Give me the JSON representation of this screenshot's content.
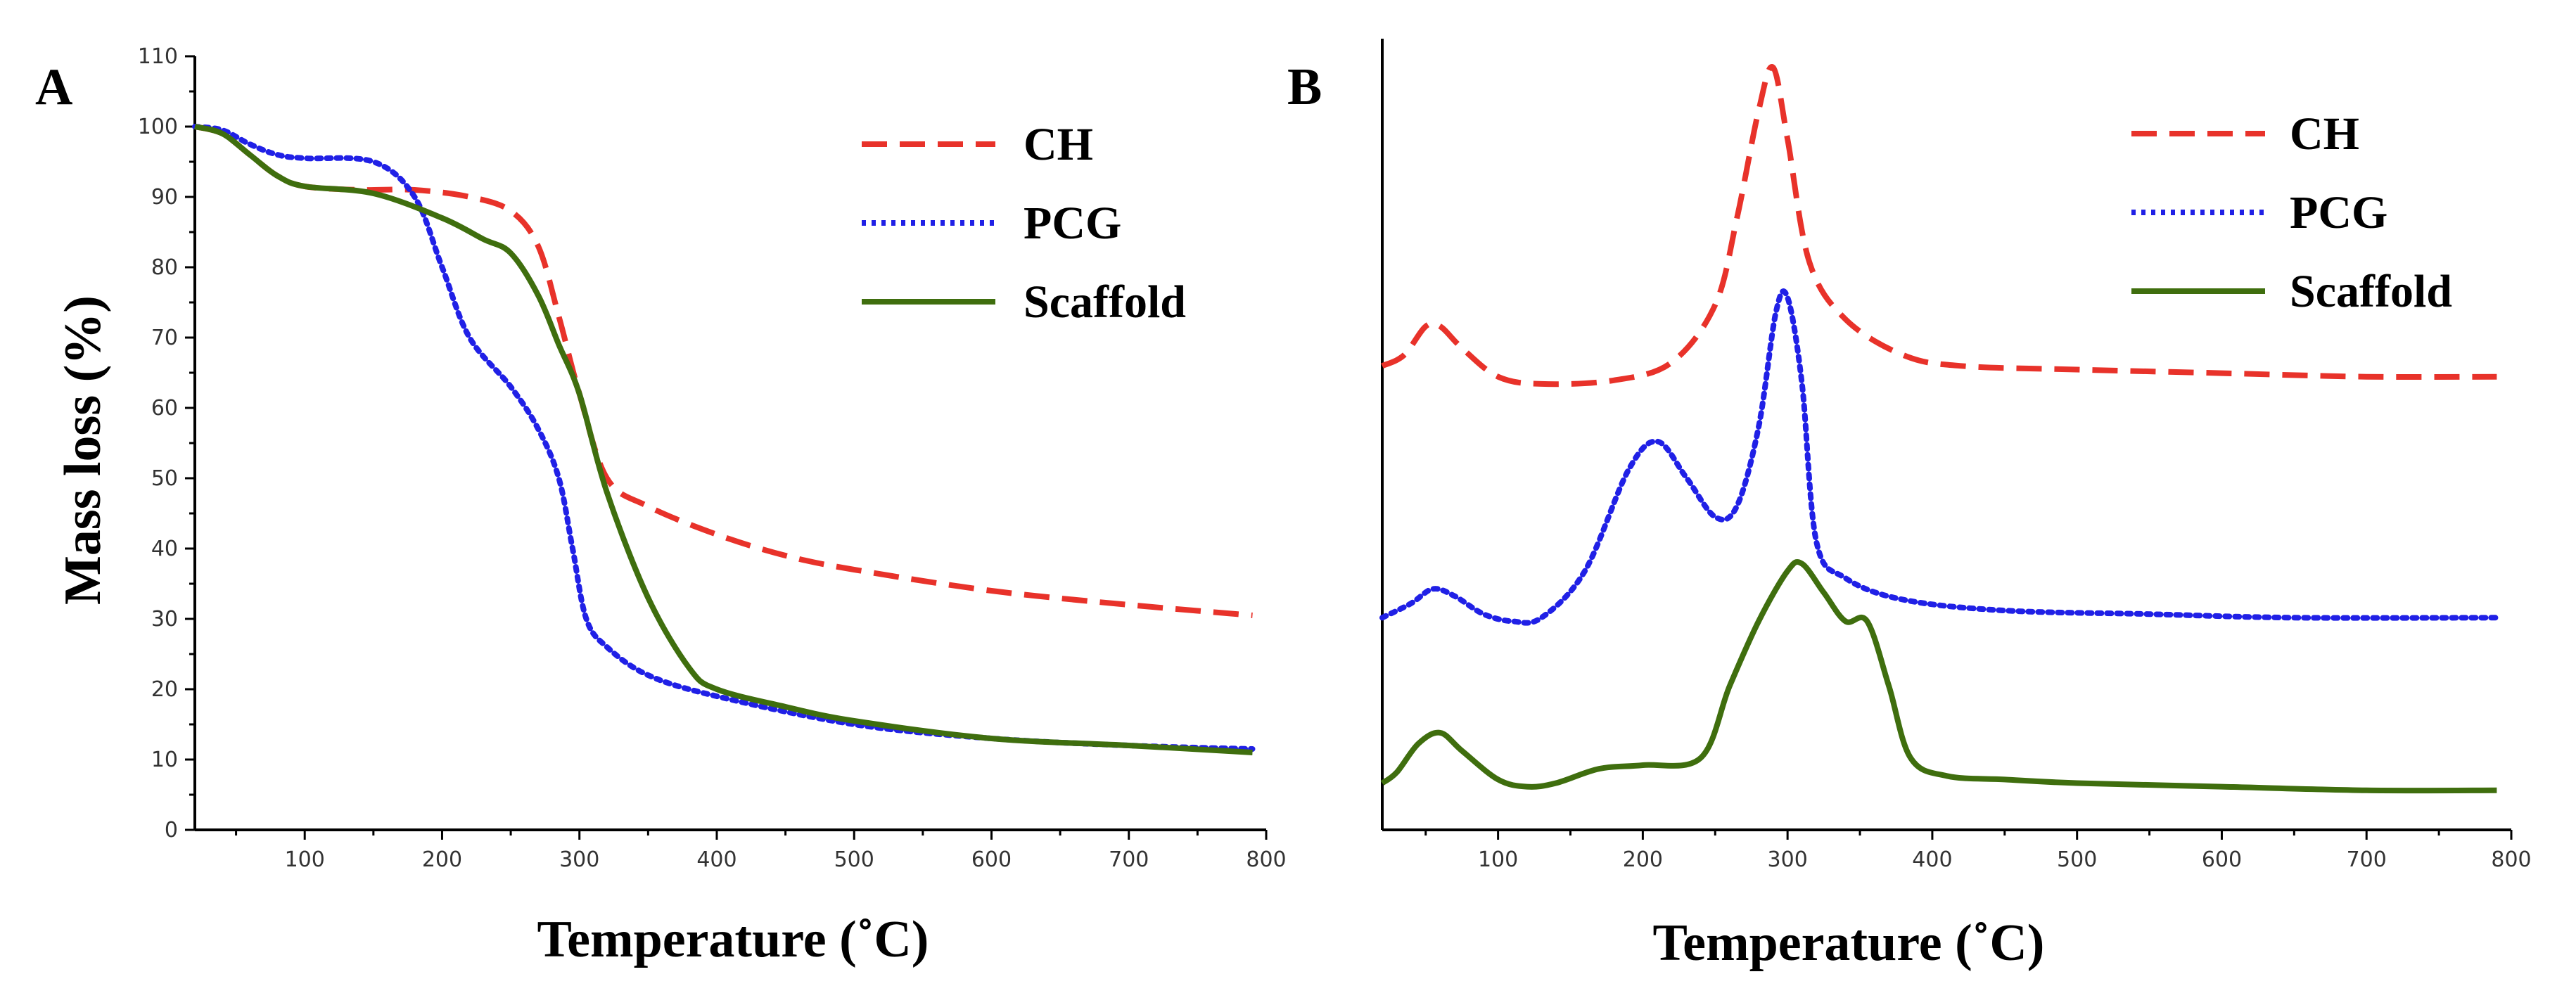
{
  "chart_data": [
    {
      "type": "line",
      "panel": "A",
      "xlabel": "Temperature (˚C)",
      "ylabel": "Mass loss (%)",
      "xlim": [
        20,
        800
      ],
      "ylim": [
        0,
        110
      ],
      "xticks": [
        100,
        200,
        300,
        400,
        500,
        600,
        700,
        800
      ],
      "yticks": [
        0,
        10,
        20,
        30,
        40,
        50,
        60,
        70,
        80,
        90,
        100,
        110
      ],
      "legend": "top-right",
      "grid": false,
      "series": [
        {
          "name": "CH",
          "color": "#e8322a",
          "style": "dashed",
          "x": [
            20,
            40,
            60,
            80,
            100,
            140,
            180,
            220,
            250,
            270,
            285,
            300,
            320,
            350,
            400,
            450,
            500,
            600,
            700,
            790
          ],
          "y": [
            100,
            99,
            96,
            93,
            91.5,
            91,
            91,
            90,
            88,
            83,
            73,
            62,
            50,
            46,
            42,
            39,
            37,
            34,
            32,
            30.5
          ]
        },
        {
          "name": "PCG",
          "color": "#2020e6",
          "style": "dotted",
          "x": [
            20,
            40,
            60,
            80,
            100,
            150,
            180,
            200,
            220,
            250,
            270,
            285,
            295,
            305,
            320,
            350,
            400,
            500,
            600,
            700,
            790
          ],
          "y": [
            100,
            99.5,
            97.5,
            96,
            95.5,
            95,
            90,
            80,
            70,
            63,
            57,
            50,
            40,
            30,
            26,
            22,
            19,
            15,
            13,
            12,
            11.5
          ]
        },
        {
          "name": "Scaffold",
          "color": "#3f6e0e",
          "style": "solid",
          "x": [
            20,
            40,
            60,
            80,
            100,
            150,
            200,
            230,
            250,
            270,
            285,
            300,
            320,
            350,
            380,
            400,
            450,
            500,
            600,
            700,
            790
          ],
          "y": [
            100,
            99,
            96,
            93,
            91.5,
            90.5,
            87,
            84,
            82,
            76,
            69,
            62,
            48,
            33,
            23,
            20,
            17.5,
            15.5,
            13,
            12,
            11
          ]
        }
      ]
    },
    {
      "type": "line",
      "panel": "B",
      "xlabel": "Temperature (˚C)",
      "ylabel": "",
      "xlim": [
        20,
        800
      ],
      "ylim": [
        0,
        110
      ],
      "xticks": [
        100,
        200,
        300,
        400,
        500,
        600,
        700,
        800
      ],
      "yticks": [],
      "legend": "top-right",
      "grid": false,
      "series": [
        {
          "name": "CH",
          "color": "#e8322a",
          "style": "dashed",
          "x": [
            20,
            35,
            50,
            60,
            75,
            100,
            130,
            180,
            220,
            250,
            265,
            280,
            290,
            300,
            315,
            340,
            380,
            420,
            500,
            600,
            700,
            790
          ],
          "y": [
            64.5,
            66,
            70,
            70,
            67,
            63,
            62,
            62.5,
            65,
            73,
            85,
            100,
            106,
            96,
            79,
            71,
            66,
            64.5,
            64,
            63.5,
            63,
            63
          ]
        },
        {
          "name": "PCG",
          "color": "#2020e6",
          "style": "dotted",
          "x": [
            20,
            40,
            55,
            70,
            90,
            110,
            130,
            160,
            190,
            210,
            230,
            250,
            265,
            280,
            292,
            300,
            310,
            320,
            340,
            380,
            450,
            550,
            650,
            790
          ],
          "y": [
            29.5,
            31.5,
            33.5,
            32.5,
            30,
            29,
            29.5,
            36,
            50,
            54,
            49,
            43.5,
            45,
            56,
            72,
            74,
            62,
            40,
            35,
            32,
            30.5,
            30,
            29.5,
            29.5
          ]
        },
        {
          "name": "Scaffold",
          "color": "#3f6e0e",
          "style": "solid",
          "x": [
            20,
            30,
            45,
            60,
            75,
            100,
            120,
            140,
            170,
            200,
            240,
            260,
            280,
            300,
            310,
            325,
            340,
            355,
            370,
            385,
            410,
            450,
            500,
            600,
            700,
            790
          ],
          "y": [
            6.5,
            8,
            12,
            13.5,
            11,
            7,
            6,
            6.5,
            8.5,
            9,
            10,
            20,
            29,
            36,
            37,
            33,
            29,
            29,
            20,
            10,
            7.5,
            7,
            6.5,
            6,
            5.5,
            5.5
          ]
        }
      ]
    }
  ]
}
